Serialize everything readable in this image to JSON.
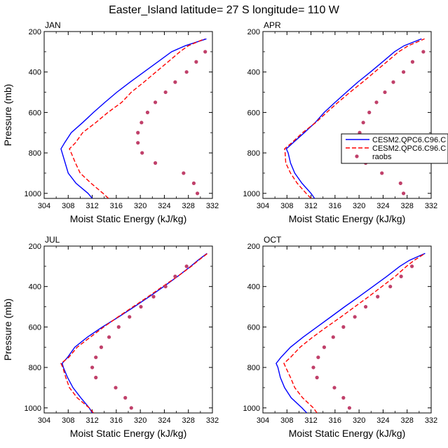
{
  "figure": {
    "title": "Easter_Island  latitude= 27 S longitude= 110 W"
  },
  "legend": {
    "entries": [
      {
        "label": "CESM2.QPC6.C96.C",
        "color": "#0000ff",
        "style": "solid"
      },
      {
        "label": "CESM2.QPC6.C96.C",
        "color": "#ff0000",
        "style": "dashed"
      },
      {
        "label": "raobs",
        "color": "#c0406a",
        "style": "markers"
      }
    ]
  },
  "chart_data": [
    {
      "type": "line",
      "panel": "JAN",
      "title": "JAN",
      "xlabel": "Moist Static Energy (kJ/kg)",
      "ylabel": "Pressure (mb)",
      "xlim": [
        304,
        332
      ],
      "ylim": [
        200,
        1025
      ],
      "y_inverted": true,
      "xticks": [
        "304",
        "308",
        "312",
        "316",
        "320",
        "324",
        "328",
        "332"
      ],
      "yticks": [
        "200",
        "400",
        "600",
        "800",
        "1000"
      ],
      "series": [
        {
          "name": "CESM2.QPC6.C96.C",
          "style": "solid",
          "color": "#0000ff",
          "p": [
            1025,
            1000,
            950,
            900,
            850,
            800,
            780,
            750,
            700,
            650,
            600,
            550,
            500,
            450,
            400,
            350,
            300,
            270,
            236
          ],
          "values": [
            312,
            311.3,
            309.3,
            308,
            307.5,
            307,
            306.8,
            307.4,
            308.5,
            310.4,
            312.2,
            314.1,
            316.1,
            318.3,
            320.6,
            322.9,
            325.2,
            327.5,
            331
          ]
        },
        {
          "name": "CESM2.QPC6.C96.C",
          "style": "dashed",
          "color": "#ff0000",
          "p": [
            1025,
            1000,
            950,
            900,
            850,
            800,
            780,
            750,
            700,
            650,
            600,
            550,
            500,
            450,
            400,
            350,
            300,
            270,
            236
          ],
          "values": [
            314.7,
            313.8,
            311.8,
            310,
            309.2,
            308.5,
            308.2,
            309.2,
            310.4,
            312.6,
            314.6,
            316.9,
            318.5,
            320.6,
            322.6,
            324.6,
            326.6,
            328,
            330.7
          ]
        },
        {
          "name": "raobs",
          "style": "markers",
          "color": "#c0406a",
          "p": [
            1000,
            950,
            900,
            850,
            800,
            750,
            700,
            650,
            600,
            550,
            500,
            450,
            400,
            350,
            300
          ],
          "values": [
            329.5,
            328.9,
            327.2,
            322.5,
            320.3,
            319.6,
            319.6,
            320.2,
            321.2,
            322.5,
            324.2,
            325.8,
            327.7,
            329.3,
            330.8
          ]
        }
      ]
    },
    {
      "type": "line",
      "panel": "APR",
      "title": "APR",
      "xlabel": "Moist Static Energy (kJ/kg)",
      "ylabel": "",
      "xlim": [
        304,
        332
      ],
      "ylim": [
        200,
        1025
      ],
      "y_inverted": true,
      "xticks": [
        "304",
        "308",
        "312",
        "316",
        "320",
        "324",
        "328",
        "332"
      ],
      "yticks": [
        "200",
        "400",
        "600",
        "800",
        "1000"
      ],
      "series": [
        {
          "name": "CESM2.QPC6.C96.C",
          "style": "solid",
          "color": "#0000ff",
          "p": [
            1025,
            1000,
            950,
            900,
            850,
            800,
            780,
            750,
            700,
            650,
            600,
            550,
            500,
            450,
            400,
            350,
            300,
            270,
            236
          ],
          "values": [
            312.6,
            312,
            310.5,
            309.3,
            308.6,
            308.2,
            307.9,
            309,
            310.9,
            312.7,
            314.2,
            316,
            317.9,
            319.8,
            321.9,
            323.9,
            325.9,
            327.5,
            330.4
          ]
        },
        {
          "name": "CESM2.QPC6.C96.C",
          "style": "dashed",
          "color": "#ff0000",
          "p": [
            1025,
            1000,
            950,
            900,
            850,
            800,
            780,
            750,
            700,
            650,
            600,
            550,
            500,
            450,
            400,
            350,
            300,
            270,
            236
          ],
          "values": [
            312,
            311.2,
            309.7,
            308.6,
            307.8,
            307.7,
            307.6,
            308.8,
            310.6,
            312.8,
            314.6,
            316.5,
            318.5,
            320.6,
            322.6,
            324.6,
            326.6,
            328.2,
            330.9
          ]
        },
        {
          "name": "raobs",
          "style": "markers",
          "color": "#c0406a",
          "p": [
            1000,
            950,
            900,
            850,
            800,
            750,
            700,
            650,
            600,
            550,
            500,
            450,
            400,
            350,
            300
          ],
          "values": [
            327.4,
            326.9,
            323.8,
            321.1,
            320.3,
            320.2,
            320.1,
            320.7,
            321.7,
            322.9,
            324.3,
            325.7,
            327.4,
            328.9,
            330.7
          ]
        }
      ]
    },
    {
      "type": "line",
      "panel": "JUL",
      "title": "JUL",
      "xlabel": "Moist Static Energy (kJ/kg)",
      "ylabel": "Pressure (mb)",
      "xlim": [
        304,
        332
      ],
      "ylim": [
        200,
        1025
      ],
      "y_inverted": true,
      "xticks": [
        "304",
        "308",
        "312",
        "316",
        "320",
        "324",
        "328",
        "332"
      ],
      "yticks": [
        "200",
        "400",
        "600",
        "800",
        "1000"
      ],
      "series": [
        {
          "name": "CESM2.QPC6.C96.C",
          "style": "solid",
          "color": "#0000ff",
          "p": [
            1025,
            1000,
            950,
            900,
            850,
            800,
            780,
            750,
            700,
            650,
            600,
            550,
            500,
            450,
            400,
            350,
            300,
            270,
            236
          ],
          "values": [
            312,
            311.5,
            310.1,
            308.8,
            307.9,
            307.2,
            307,
            307.9,
            309.1,
            311.2,
            313.7,
            316.4,
            319,
            321.5,
            323.9,
            326.2,
            328.4,
            329.6,
            331.1
          ]
        },
        {
          "name": "CESM2.QPC6.C96.C",
          "style": "dashed",
          "color": "#ff0000",
          "p": [
            1025,
            1000,
            950,
            900,
            850,
            800,
            780,
            750,
            700,
            650,
            600,
            550,
            500,
            450,
            400,
            350,
            300,
            270,
            236
          ],
          "values": [
            312.2,
            311.5,
            309.5,
            308.2,
            307.6,
            307.1,
            306.8,
            308.1,
            309.5,
            311.7,
            313.9,
            316.3,
            318.8,
            321.3,
            323.7,
            326.2,
            328.5,
            329.7,
            331.2
          ]
        },
        {
          "name": "raobs",
          "style": "markers",
          "color": "#c0406a",
          "p": [
            1000,
            950,
            900,
            850,
            800,
            750,
            700,
            650,
            600,
            550,
            500,
            450,
            400,
            350,
            300
          ],
          "values": [
            318.5,
            317.5,
            315.9,
            312.6,
            312,
            312.6,
            313.5,
            314.8,
            316.4,
            318.2,
            320.1,
            322.2,
            324.2,
            325.8,
            327.7
          ]
        }
      ]
    },
    {
      "type": "line",
      "panel": "OCT",
      "title": "OCT",
      "xlabel": "Moist Static Energy (kJ/kg)",
      "ylabel": "",
      "xlim": [
        304,
        332
      ],
      "ylim": [
        200,
        1025
      ],
      "y_inverted": true,
      "xticks": [
        "304",
        "308",
        "312",
        "316",
        "320",
        "324",
        "328",
        "332"
      ],
      "yticks": [
        "200",
        "400",
        "600",
        "800",
        "1000"
      ],
      "series": [
        {
          "name": "CESM2.QPC6.C96.C",
          "style": "solid",
          "color": "#0000ff",
          "p": [
            1025,
            1000,
            950,
            900,
            850,
            800,
            780,
            750,
            700,
            650,
            600,
            550,
            500,
            450,
            400,
            350,
            300,
            270,
            236
          ],
          "values": [
            311.3,
            310.5,
            308.7,
            307.6,
            306.9,
            306.5,
            306.2,
            307,
            308.6,
            310.7,
            313,
            315.3,
            317.6,
            320,
            322.3,
            324.6,
            326.8,
            328.4,
            331
          ]
        },
        {
          "name": "CESM2.QPC6.C96.C",
          "style": "dashed",
          "color": "#ff0000",
          "p": [
            1025,
            1000,
            950,
            900,
            850,
            800,
            780,
            750,
            700,
            650,
            600,
            550,
            500,
            450,
            400,
            350,
            300,
            270,
            236
          ],
          "values": [
            313,
            312.4,
            310.6,
            309.3,
            308.6,
            307.8,
            307.5,
            308.6,
            310.2,
            312.3,
            314.6,
            317,
            319.3,
            321.6,
            323.8,
            326,
            327.9,
            329.2,
            331
          ]
        },
        {
          "name": "raobs",
          "style": "markers",
          "color": "#c0406a",
          "p": [
            1000,
            950,
            900,
            850,
            800,
            750,
            700,
            650,
            600,
            550,
            500,
            450,
            400,
            350,
            300
          ],
          "values": [
            318.4,
            317.4,
            315.9,
            313,
            312.4,
            313.2,
            314.2,
            315.7,
            317.4,
            319.3,
            321.1,
            323.1,
            325.2,
            327,
            328.8
          ]
        }
      ]
    }
  ]
}
